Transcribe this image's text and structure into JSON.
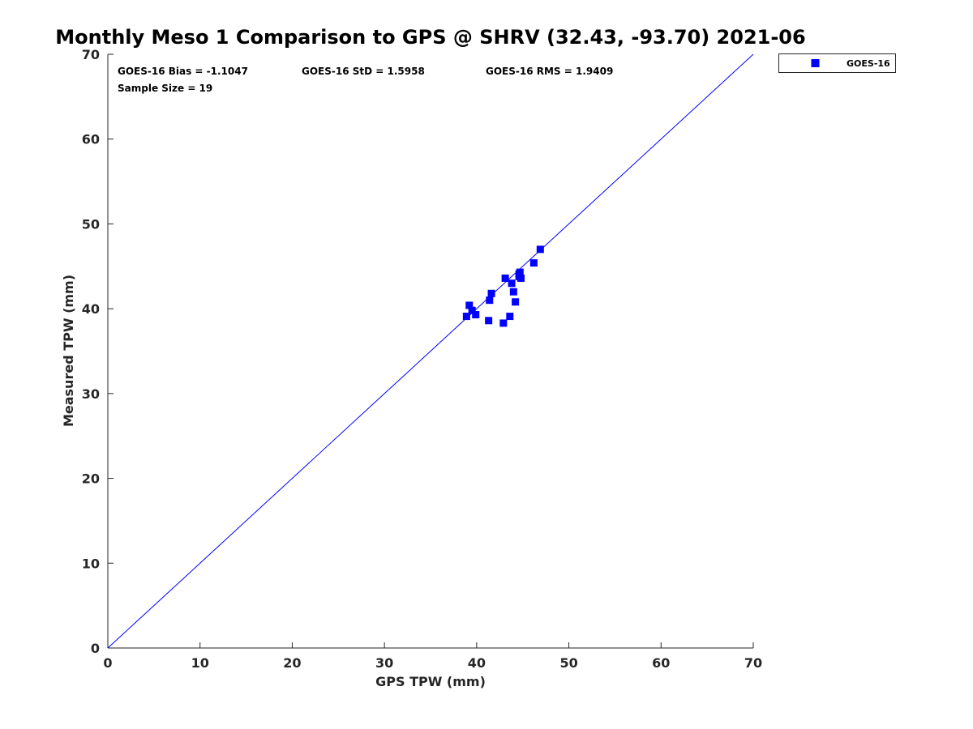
{
  "chart_data": {
    "type": "scatter",
    "title": "Monthly Meso 1 Comparison to GPS @ SHRV (32.43, -93.70) 2021-06",
    "xlabel": "GPS TPW (mm)",
    "ylabel": "Measured TPW (mm)",
    "xlim": [
      0,
      70
    ],
    "ylim": [
      0,
      70
    ],
    "xticks": [
      "0",
      "10",
      "20",
      "30",
      "40",
      "50",
      "60",
      "70"
    ],
    "yticks": [
      "0",
      "10",
      "20",
      "30",
      "40",
      "50",
      "60",
      "70"
    ],
    "grid": false,
    "legend_position": "outside-top-right",
    "stats": {
      "bias": "GOES-16 Bias = -1.1047",
      "std": "GOES-16 StD = 1.5958",
      "rms": "GOES-16 RMS = 1.9409",
      "sample": "Sample Size = 19"
    },
    "reference_line": {
      "x": [
        0,
        70
      ],
      "y": [
        0,
        70
      ],
      "color": "#0000ff"
    },
    "series": [
      {
        "name": "GOES-16",
        "color": "#0000ff",
        "marker": "square",
        "points": [
          {
            "x": 38.9,
            "y": 39.1
          },
          {
            "x": 39.2,
            "y": 40.4
          },
          {
            "x": 39.5,
            "y": 39.8
          },
          {
            "x": 39.9,
            "y": 39.3
          },
          {
            "x": 41.3,
            "y": 38.6
          },
          {
            "x": 41.4,
            "y": 41.0
          },
          {
            "x": 41.6,
            "y": 41.8
          },
          {
            "x": 42.9,
            "y": 38.3
          },
          {
            "x": 43.1,
            "y": 43.6
          },
          {
            "x": 43.6,
            "y": 39.1
          },
          {
            "x": 43.8,
            "y": 43.0
          },
          {
            "x": 44.0,
            "y": 42.0
          },
          {
            "x": 44.2,
            "y": 40.8
          },
          {
            "x": 44.6,
            "y": 43.8
          },
          {
            "x": 44.7,
            "y": 44.3
          },
          {
            "x": 44.8,
            "y": 43.6
          },
          {
            "x": 44.6,
            "y": 44.1
          },
          {
            "x": 46.2,
            "y": 45.4
          },
          {
            "x": 46.9,
            "y": 47.0
          }
        ]
      }
    ]
  }
}
